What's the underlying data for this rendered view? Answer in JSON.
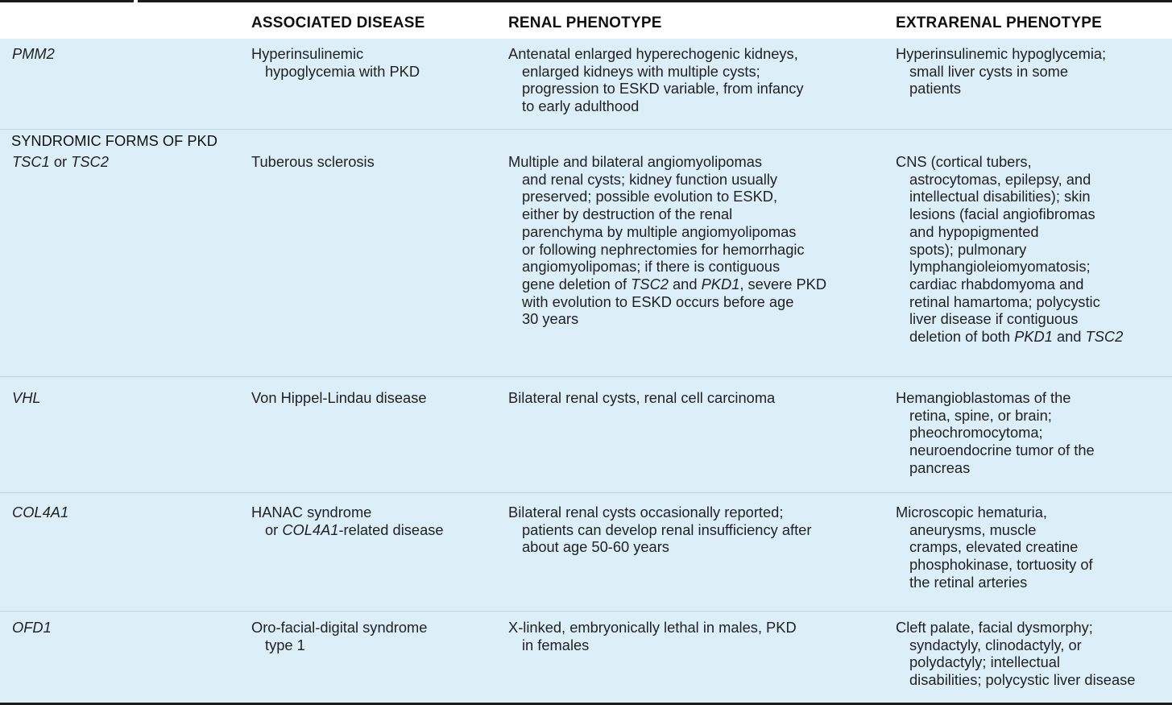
{
  "header": {
    "col1": "",
    "col2": "ASSOCIATED DISEASE",
    "col3": "RENAL PHENOTYPE",
    "col4": "EXTRARENAL PHENOTYPE"
  },
  "rows": [
    {
      "gene": "PMM2",
      "disease": [
        "Hyperinsulinemic",
        "hypoglycemia with PKD"
      ],
      "renal": [
        "Antenatal enlarged hyperechogenic kidneys,",
        "enlarged kidneys with multiple cysts;",
        "progression to ESKD variable, from infancy",
        "to early adulthood"
      ],
      "extrarenal": [
        "Hyperinsulinemic hypoglycemia;",
        "small liver cysts in some",
        "patients"
      ]
    },
    {
      "section": "SYNDROMIC FORMS OF PKD"
    },
    {
      "gene_a": "TSC1",
      "gene_or": " or ",
      "gene_b": "TSC2",
      "disease": [
        "Tuberous sclerosis"
      ],
      "renal": [
        "Multiple and bilateral angiomyolipomas",
        "and renal cysts; kidney function usually",
        "preserved; possible evolution to ESKD,",
        "either by destruction of the renal",
        "parenchyma by multiple angiomyolipomas",
        "or following nephrectomies for hemorrhagic",
        "angiomyolipomas; if there is contiguous"
      ],
      "renal_l8_a": "gene deletion of ",
      "renal_l8_b": "TSC2",
      "renal_l8_c": " and ",
      "renal_l8_d": "PKD1",
      "renal_l8_e": ", severe PKD",
      "renal_tail": [
        "with evolution to ESKD occurs before age",
        "30 years"
      ],
      "extrarenal": [
        "CNS (cortical tubers,",
        "astrocytomas, epilepsy, and",
        "intellectual disabilities); skin",
        "lesions (facial angiofibromas",
        "and hypopigmented",
        "spots); pulmonary",
        "lymphangioleiomyomatosis;",
        "cardiac rhabdomyoma and",
        "retinal hamartoma; polycystic",
        "liver disease if contiguous"
      ],
      "extrarenal_last_a": "deletion of both ",
      "extrarenal_last_b": "PKD1",
      "extrarenal_last_c": " and ",
      "extrarenal_last_d": "TSC2"
    },
    {
      "gene": "VHL",
      "disease": [
        "Von Hippel-Lindau disease"
      ],
      "renal": [
        "Bilateral renal cysts, renal cell carcinoma"
      ],
      "extrarenal": [
        "Hemangioblastomas of the",
        "retina, spine, or brain;",
        "pheochromocytoma;",
        "neuroendocrine tumor of the",
        "pancreas"
      ]
    },
    {
      "gene": "COL4A1",
      "disease_l1": "HANAC syndrome",
      "disease_l2_a": "or ",
      "disease_l2_b": "COL4A1",
      "disease_l2_c": "-related disease",
      "renal": [
        "Bilateral renal cysts occasionally reported;",
        "patients can develop renal insufficiency after",
        "about age 50-60 years"
      ],
      "extrarenal": [
        "Microscopic hematuria,",
        "aneurysms, muscle",
        "cramps, elevated creatine",
        "phosphokinase, tortuosity of",
        "the retinal arteries"
      ]
    },
    {
      "gene": "OFD1",
      "disease": [
        "Oro-facial-digital syndrome",
        "type 1"
      ],
      "renal": [
        "X-linked, embryonically lethal in males, PKD",
        "in females"
      ],
      "extrarenal": [
        "Cleft palate, facial dysmorphy;",
        "syndactyly, clinodactyly, or",
        "polydactyly; intellectual",
        "disabilities; polycystic liver disease"
      ]
    }
  ]
}
